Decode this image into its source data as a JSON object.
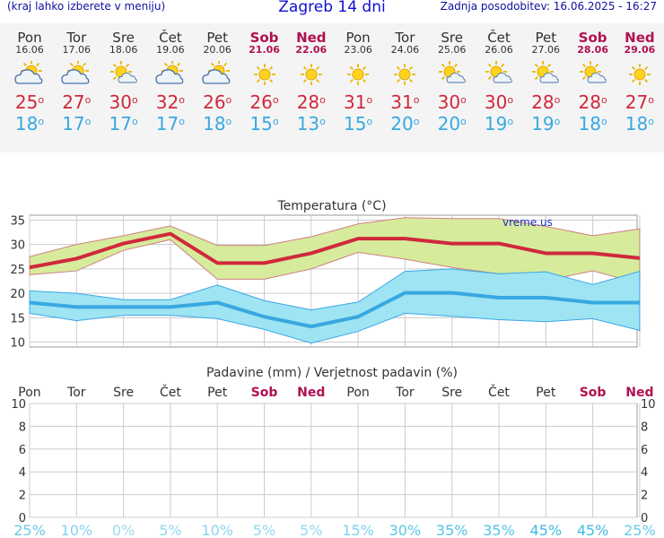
{
  "header": {
    "menu_hint": "(kraj lahko izberete v meniju)",
    "title": "Zagreb 14 dni",
    "updated": "Zadnja posodobitev: 16.06.2025 - 16:27"
  },
  "days": [
    {
      "name": "Pon",
      "date": "16.06",
      "weekend": false,
      "icon": "partly-cloudy-icon",
      "tmax": "25",
      "tmin": "18"
    },
    {
      "name": "Tor",
      "date": "17.06",
      "weekend": false,
      "icon": "partly-cloudy-icon",
      "tmax": "27",
      "tmin": "17"
    },
    {
      "name": "Sre",
      "date": "18.06",
      "weekend": false,
      "icon": "sun-small-cloud-icon",
      "tmax": "30",
      "tmin": "17"
    },
    {
      "name": "Čet",
      "date": "19.06",
      "weekend": false,
      "icon": "partly-cloudy-icon",
      "tmax": "32",
      "tmin": "17"
    },
    {
      "name": "Pet",
      "date": "20.06",
      "weekend": false,
      "icon": "partly-cloudy-icon",
      "tmax": "26",
      "tmin": "18"
    },
    {
      "name": "Sob",
      "date": "21.06",
      "weekend": true,
      "icon": "sun-icon",
      "tmax": "26",
      "tmin": "15"
    },
    {
      "name": "Ned",
      "date": "22.06",
      "weekend": true,
      "icon": "sun-icon",
      "tmax": "28",
      "tmin": "13"
    },
    {
      "name": "Pon",
      "date": "23.06",
      "weekend": false,
      "icon": "sun-icon",
      "tmax": "31",
      "tmin": "15"
    },
    {
      "name": "Tor",
      "date": "24.06",
      "weekend": false,
      "icon": "sun-icon",
      "tmax": "31",
      "tmin": "20"
    },
    {
      "name": "Sre",
      "date": "25.06",
      "weekend": false,
      "icon": "sun-small-cloud-icon",
      "tmax": "30",
      "tmin": "20"
    },
    {
      "name": "Čet",
      "date": "26.06",
      "weekend": false,
      "icon": "sun-small-cloud-icon",
      "tmax": "30",
      "tmin": "19"
    },
    {
      "name": "Pet",
      "date": "27.06",
      "weekend": false,
      "icon": "sun-small-cloud-icon",
      "tmax": "28",
      "tmin": "19"
    },
    {
      "name": "Sob",
      "date": "28.06",
      "weekend": true,
      "icon": "sun-small-cloud-icon",
      "tmax": "28",
      "tmin": "18"
    },
    {
      "name": "Ned",
      "date": "29.06",
      "weekend": true,
      "icon": "sun-icon",
      "tmax": "27",
      "tmin": "18"
    }
  ],
  "colors": {
    "max": "#d0283c",
    "min": "#38a8e0",
    "weekend": "#b01050",
    "max_band": "#d6ec9c",
    "min_band": "#9ee4f2",
    "precip_prob": "#20b0e0"
  },
  "chart_data": [
    {
      "type": "line",
      "title": "Temperatura (°C)",
      "watermark": "vreme.us",
      "ylim": [
        9,
        36
      ],
      "yticks": [
        10,
        15,
        20,
        25,
        30,
        35
      ],
      "grid": true,
      "series": [
        {
          "name": "max",
          "values": [
            25.3,
            27.1,
            30.2,
            32.2,
            26.2,
            26.2,
            28.2,
            31.2,
            31.2,
            30.2,
            30.2,
            28.2,
            28.2,
            27.2
          ]
        },
        {
          "name": "max_upper",
          "values": [
            27.5,
            30.0,
            31.8,
            33.8,
            29.8,
            29.8,
            31.6,
            34.2,
            35.5,
            35.3,
            35.3,
            33.7,
            31.8,
            33.2
          ]
        },
        {
          "name": "max_lower",
          "values": [
            23.8,
            24.6,
            28.8,
            31.0,
            22.9,
            22.9,
            25.0,
            28.4,
            27.0,
            25.3,
            24.0,
            22.6,
            24.6,
            22.0
          ]
        },
        {
          "name": "min",
          "values": [
            18.1,
            17.2,
            17.2,
            17.2,
            18.1,
            15.2,
            13.2,
            15.2,
            20.1,
            20.1,
            19.1,
            19.1,
            18.1,
            18.1
          ]
        },
        {
          "name": "min_upper",
          "values": [
            20.5,
            20.0,
            18.7,
            18.7,
            21.7,
            18.5,
            16.6,
            18.2,
            24.5,
            25.0,
            24.0,
            24.4,
            21.8,
            24.5
          ]
        },
        {
          "name": "min_lower",
          "values": [
            15.9,
            14.4,
            15.5,
            15.5,
            14.8,
            12.6,
            9.8,
            12.2,
            15.9,
            15.3,
            14.6,
            14.2,
            14.8,
            12.4
          ]
        }
      ]
    },
    {
      "type": "bar",
      "title": "Padavine (mm) / Verjetnost padavin (%)",
      "categories": [
        "Pon",
        "Tor",
        "Sre",
        "Čet",
        "Pet",
        "Sob",
        "Ned",
        "Pon",
        "Tor",
        "Sre",
        "Čet",
        "Pet",
        "Sob",
        "Ned"
      ],
      "weekend": [
        false,
        false,
        false,
        false,
        false,
        true,
        true,
        false,
        false,
        false,
        false,
        false,
        true,
        true
      ],
      "values": [
        0,
        0,
        0,
        0,
        0,
        0,
        0,
        0,
        0,
        0,
        0,
        0,
        0,
        0
      ],
      "ylim": [
        0,
        10
      ],
      "yticks": [
        0,
        2,
        4,
        6,
        8,
        10
      ],
      "probability": [
        "25%",
        "10%",
        "0%",
        "5%",
        "10%",
        "5%",
        "5%",
        "15%",
        "30%",
        "35%",
        "35%",
        "45%",
        "45%",
        "25%"
      ]
    }
  ]
}
